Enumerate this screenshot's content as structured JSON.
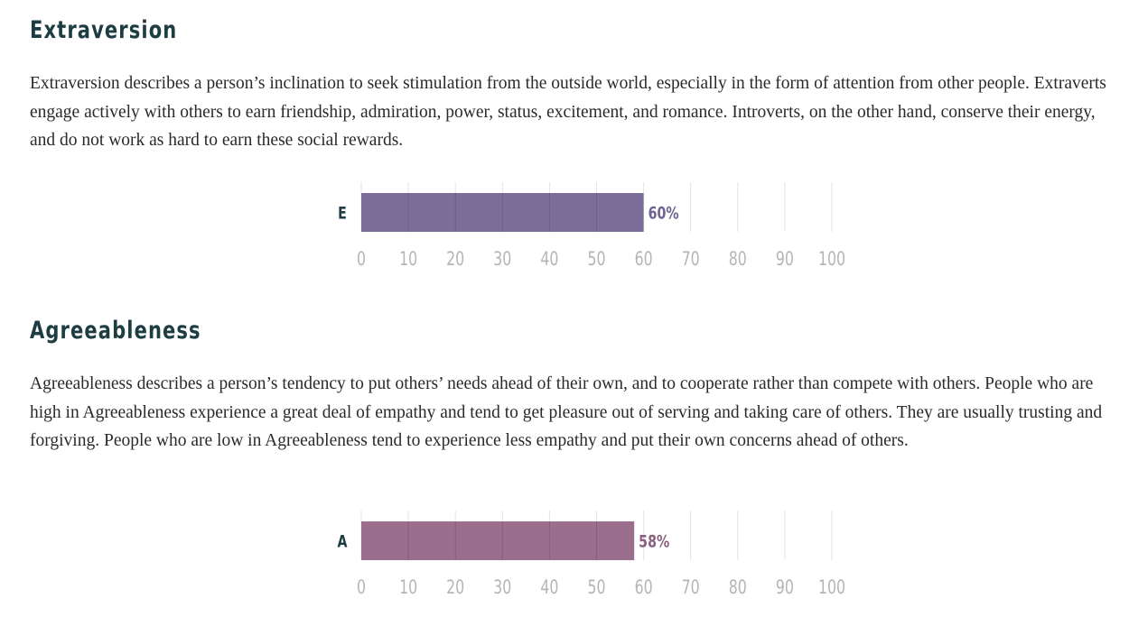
{
  "sections": [
    {
      "title": "Extraversion",
      "description": "Extraversion describes a person’s inclination to seek stimulation from the outside world, especially in the form of attention from other people. Extraverts engage actively with others to earn friendship, admiration, power, status, excitement, and romance. Introverts, on the other hand, conserve their energy, and do not work as hard to earn these social rewards."
    },
    {
      "title": "Agreeableness",
      "description": "Agreeableness describes a person’s tendency to put others’ needs ahead of their own, and to cooperate rather than compete with others. People who are high in Agreeableness experience a great deal of empathy and tend to get pleasure out of serving and taking care of others. They are usually trusting and forgiving. People who are low in Agreeableness tend to experience less empathy and put their own concerns ahead of others."
    }
  ],
  "chart_data": [
    {
      "type": "bar",
      "orientation": "horizontal",
      "categories": [
        "E"
      ],
      "values": [
        60
      ],
      "value_label": "60%",
      "xlim": [
        0,
        100
      ],
      "xticks": [
        "0",
        "10",
        "20",
        "30",
        "40",
        "50",
        "60",
        "70",
        "80",
        "90",
        "100"
      ],
      "grid": true,
      "bar_color": "#7b6d98",
      "label_color": "#6e6290"
    },
    {
      "type": "bar",
      "orientation": "horizontal",
      "categories": [
        "A"
      ],
      "values": [
        58
      ],
      "value_label": "58%",
      "xlim": [
        0,
        100
      ],
      "xticks": [
        "0",
        "10",
        "20",
        "30",
        "40",
        "50",
        "60",
        "70",
        "80",
        "90",
        "100"
      ],
      "grid": true,
      "bar_color": "#9a6e8c",
      "label_color": "#8a5e7e"
    }
  ]
}
